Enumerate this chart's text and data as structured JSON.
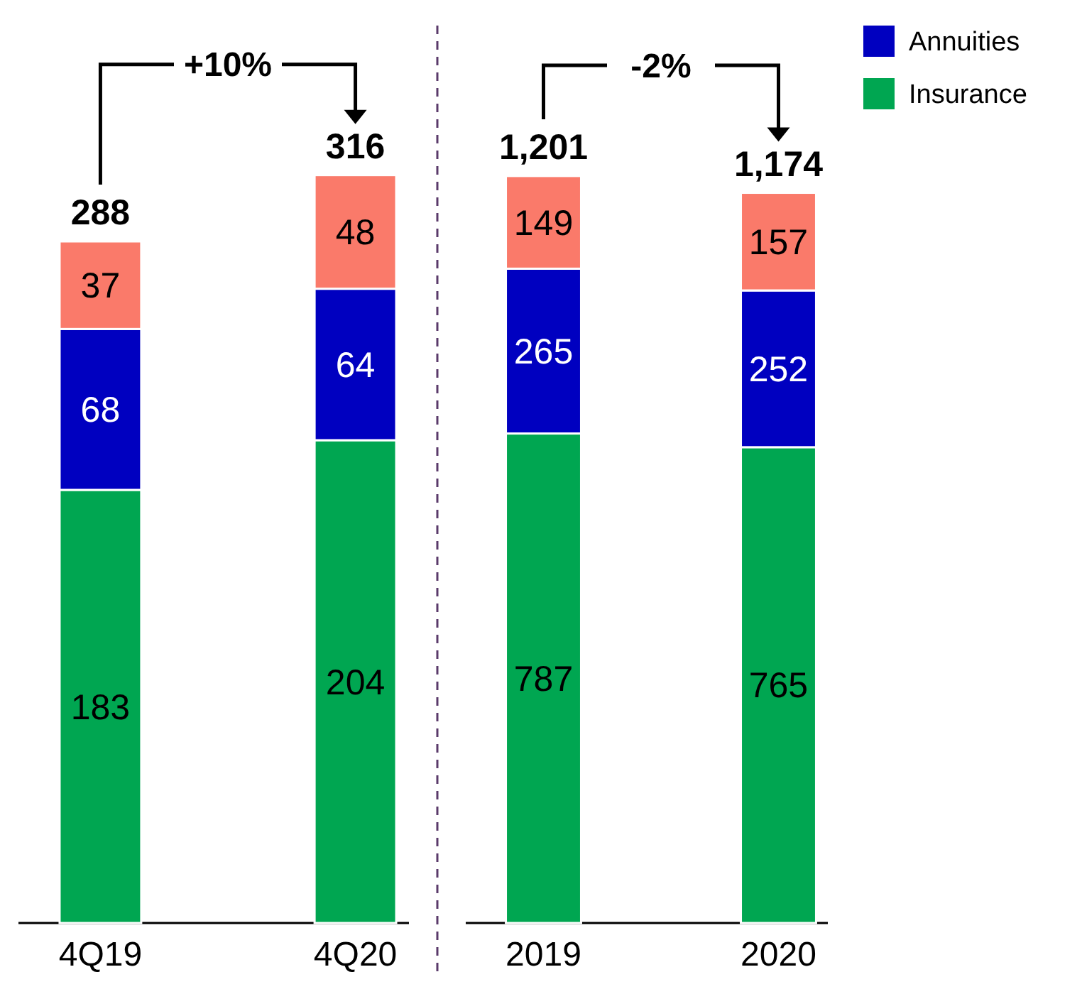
{
  "chart_data": [
    {
      "type": "bar",
      "stacked": true,
      "categories": [
        "4Q19",
        "4Q20"
      ],
      "ylim": [
        0,
        318
      ],
      "data_labels": true,
      "totals": [
        "288",
        "316"
      ],
      "annotations": [
        "+10%"
      ],
      "series": [
        {
          "color": "#00a651",
          "values": [
            183,
            204
          ]
        },
        {
          "color": "#0000c0",
          "values": [
            68,
            64
          ]
        },
        {
          "color": "#fa7a6a",
          "values": [
            37,
            48
          ]
        }
      ]
    },
    {
      "type": "bar",
      "stacked": true,
      "categories": [
        "2019",
        "2020"
      ],
      "ylim": [
        0,
        1210
      ],
      "data_labels": true,
      "totals": [
        "1,201",
        "1,174"
      ],
      "annotations": [
        "-2%"
      ],
      "legend": "right",
      "series": [
        {
          "name": "Insurance",
          "color": "#00a651",
          "values": [
            787,
            765
          ]
        },
        {
          "name": "Annuities",
          "color": "#0000c0",
          "values": [
            265,
            252
          ]
        },
        {
          "color": "#fa7a6a",
          "values": [
            149,
            157
          ]
        }
      ]
    }
  ]
}
